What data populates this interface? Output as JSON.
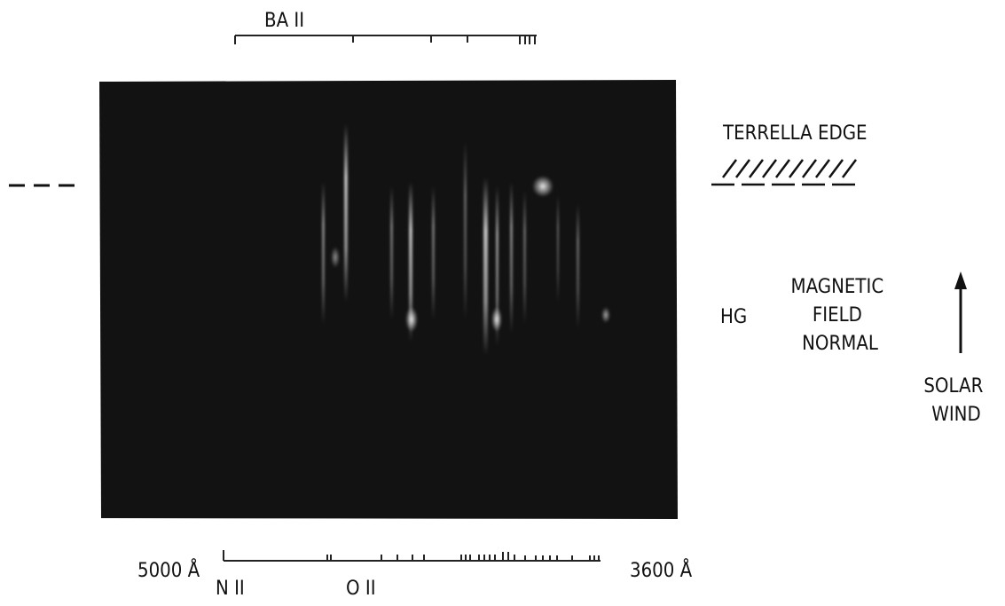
{
  "top_scale": {
    "label": "BA II"
  },
  "terrella_label": "TERRELLA EDGE",
  "hg_label": "HG",
  "field_label": {
    "lines": [
      "MAGNETIC",
      "FIELD",
      "NORMAL"
    ]
  },
  "wind_label": {
    "lines": [
      "SOLAR",
      "WIND"
    ]
  },
  "bottom_scale": {
    "left_wavelength": "5000 Å",
    "right_wavelength": "3600 Å",
    "left_ion": "N II",
    "right_ion": "O II"
  }
}
